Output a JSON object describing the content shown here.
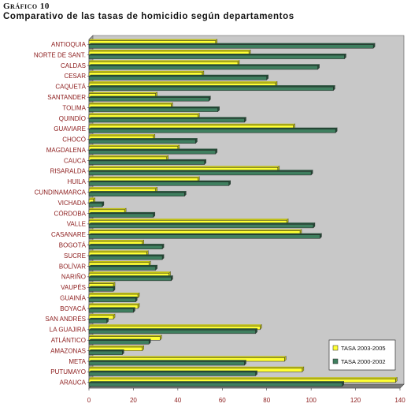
{
  "header": {
    "figure_label": "Gráfico 10",
    "title": "Comparativo de las tasas de homicidio según departamentos"
  },
  "colors": {
    "series_2003_2005": "#ffff33",
    "series_2000_2002": "#3f7f5f",
    "plot_background": "#c8c8c8",
    "label_text": "#8b1a1a"
  },
  "chart_data": {
    "type": "bar",
    "orientation": "horizontal",
    "categories": [
      "ANTIOQUIA",
      "NORTE DE SANT.",
      "CALDAS",
      "CESAR",
      "CAQUETÁ",
      "SANTANDER",
      "TOLIMA",
      "QUINDÍO",
      "GUAVIARE",
      "CHOCÓ",
      "MAGDALENA",
      "CAUCA",
      "RISARALDA",
      "HUILA",
      "CUNDINAMARCA",
      "VICHADA",
      "CÓRDOBA",
      "VALLE",
      "CASANARE",
      "BOGOTÁ",
      "SUCRE",
      "BOLÍVAR",
      "NARIÑO",
      "VAUPÉS",
      "GUAINÍA",
      "BOYACÁ",
      "SAN ANDRÉS",
      "LA GUAJIRA",
      "ATLÁNTICO",
      "AMAZONAS",
      "META",
      "PUTUMAYO",
      "ARAUCA"
    ],
    "series": [
      {
        "name": "TASA 2003-2005",
        "values": [
          57,
          72,
          67,
          51,
          84,
          30,
          37,
          49,
          92,
          29,
          40,
          35,
          85,
          49,
          30,
          2,
          16,
          89,
          95,
          24,
          26,
          27,
          36,
          11,
          22,
          22,
          11,
          77,
          32,
          24,
          88,
          96,
          138
        ]
      },
      {
        "name": "TASA 2000-2002",
        "values": [
          128,
          115,
          103,
          80,
          110,
          54,
          58,
          70,
          111,
          48,
          57,
          52,
          100,
          63,
          43,
          6,
          29,
          101,
          104,
          33,
          33,
          30,
          37,
          11,
          21,
          20,
          8,
          75,
          27,
          15,
          70,
          75,
          114
        ]
      }
    ],
    "xlim": [
      0,
      140
    ],
    "x_ticks": [
      "0",
      "20",
      "40",
      "60",
      "80",
      "100",
      "120",
      "140"
    ],
    "legend_position": "bottom-right",
    "grid": false
  }
}
